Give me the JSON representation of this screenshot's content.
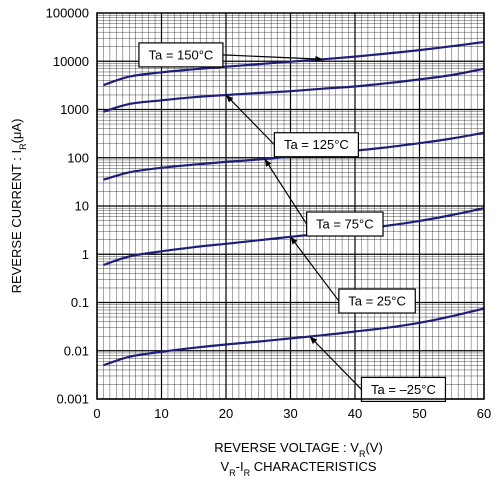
{
  "chart_data": {
    "type": "line",
    "title": "VR-IR CHARACTERISTICS",
    "xlabel": "REVERSE VOLTAGE : VR(V)",
    "ylabel": "REVERSE CURRENT : IR(μA)",
    "xlim": [
      0,
      60
    ],
    "ylim": [
      0.001,
      100000
    ],
    "y_scale": "log",
    "grid": true,
    "x_ticks": [
      "0",
      "10",
      "20",
      "30",
      "40",
      "50",
      "60"
    ],
    "y_ticks": [
      "0.001",
      "0.01",
      "0.1",
      "1",
      "10",
      "100",
      "1000",
      "10000",
      "100000"
    ],
    "x": [
      1,
      5,
      10,
      15,
      20,
      25,
      30,
      35,
      40,
      45,
      50,
      55,
      60
    ],
    "series": [
      {
        "name": "Ta = 150°C",
        "values": [
          3200,
          4800,
          5900,
          6800,
          7700,
          8700,
          9800,
          11000,
          12500,
          14500,
          17000,
          20500,
          25000
        ]
      },
      {
        "name": "Ta = 125°C",
        "values": [
          900,
          1300,
          1550,
          1800,
          2000,
          2200,
          2400,
          2700,
          3000,
          3500,
          4200,
          5200,
          7000
        ]
      },
      {
        "name": "Ta = 75°C",
        "values": [
          35,
          50,
          62,
          72,
          82,
          92,
          105,
          120,
          140,
          165,
          200,
          250,
          330
        ]
      },
      {
        "name": "Ta = 25°C",
        "values": [
          0.6,
          0.9,
          1.15,
          1.4,
          1.65,
          1.95,
          2.3,
          2.7,
          3.2,
          3.9,
          4.9,
          6.5,
          9
        ]
      },
      {
        "name": "Ta = –25°C",
        "values": [
          0.005,
          0.0075,
          0.0095,
          0.0115,
          0.0135,
          0.0155,
          0.018,
          0.021,
          0.025,
          0.03,
          0.038,
          0.052,
          0.075
        ]
      }
    ],
    "annotations": [
      {
        "text": "Ta = 150°C",
        "series": 0,
        "point_x": 35,
        "box": {
          "x": 6.5,
          "y": 24000
        }
      },
      {
        "text": "Ta = 125°C",
        "series": 1,
        "point_x": 20,
        "box": {
          "x": 27.5,
          "y": 330
        }
      },
      {
        "text": "Ta = 75°C",
        "series": 2,
        "point_x": 26,
        "box": {
          "x": 32.5,
          "y": 7.5
        }
      },
      {
        "text": "Ta = 25°C",
        "series": 3,
        "point_x": 30,
        "box": {
          "x": 37.5,
          "y": 0.19
        }
      },
      {
        "text": "Ta = –25°C",
        "series": 4,
        "point_x": 33,
        "box": {
          "x": 41,
          "y": 0.0028
        }
      }
    ]
  },
  "colors": {
    "curve": "#1f1f7a",
    "frame": "#000000",
    "grid": "#000000"
  }
}
